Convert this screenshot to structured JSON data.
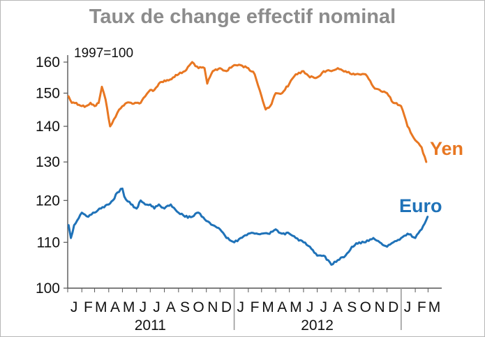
{
  "chart_data": {
    "type": "line",
    "title": "Taux de change effectif nominal",
    "note": "1997=100",
    "y_scale": "log",
    "ylim": [
      100,
      160
    ],
    "yticks": [
      "160",
      "150",
      "140",
      "130",
      "120",
      "110",
      "100"
    ],
    "ytick_values": [
      160,
      150,
      140,
      130,
      120,
      110,
      100
    ],
    "x_start": "2011-01-01",
    "x_end": "2013-03-31",
    "month_ticks": [
      "J",
      "F",
      "M",
      "A",
      "M",
      "J",
      "J",
      "A",
      "S",
      "O",
      "N",
      "D",
      "J",
      "F",
      "M",
      "A",
      "M",
      "J",
      "J",
      "A",
      "S",
      "O",
      "N",
      "D",
      "J",
      "F",
      "M"
    ],
    "month_dates": [
      "2011-01-15",
      "2011-02-15",
      "2011-03-15",
      "2011-04-15",
      "2011-05-15",
      "2011-06-15",
      "2011-07-15",
      "2011-08-15",
      "2011-09-15",
      "2011-10-15",
      "2011-11-15",
      "2011-12-15",
      "2012-01-15",
      "2012-02-15",
      "2012-03-15",
      "2012-04-15",
      "2012-05-15",
      "2012-06-15",
      "2012-07-15",
      "2012-08-15",
      "2012-09-15",
      "2012-10-15",
      "2012-11-15",
      "2012-12-15",
      "2013-01-15",
      "2013-02-15",
      "2013-03-15"
    ],
    "years": [
      {
        "label": "2011",
        "mid": "2011-07-01"
      },
      {
        "label": "2012",
        "mid": "2012-07-01"
      }
    ],
    "year_separators": [
      "2012-01-01",
      "2013-01-01"
    ],
    "series": [
      {
        "name": "Yen",
        "color": "#e87722",
        "x": [
          "2011-01-03",
          "2011-01-10",
          "2011-01-20",
          "2011-02-01",
          "2011-02-10",
          "2011-02-20",
          "2011-03-01",
          "2011-03-10",
          "2011-03-17",
          "2011-03-25",
          "2011-04-04",
          "2011-04-12",
          "2011-04-20",
          "2011-05-01",
          "2011-05-10",
          "2011-05-20",
          "2011-06-01",
          "2011-06-10",
          "2011-06-20",
          "2011-07-01",
          "2011-07-10",
          "2011-07-20",
          "2011-08-01",
          "2011-08-10",
          "2011-08-20",
          "2011-09-01",
          "2011-09-15",
          "2011-10-01",
          "2011-10-15",
          "2011-10-28",
          "2011-11-03",
          "2011-11-15",
          "2011-12-01",
          "2011-12-15",
          "2012-01-01",
          "2012-01-15",
          "2012-02-01",
          "2012-02-15",
          "2012-03-01",
          "2012-03-10",
          "2012-03-20",
          "2012-04-01",
          "2012-04-15",
          "2012-05-01",
          "2012-05-15",
          "2012-06-01",
          "2012-06-15",
          "2012-07-01",
          "2012-07-15",
          "2012-08-01",
          "2012-08-15",
          "2012-09-01",
          "2012-09-15",
          "2012-10-01",
          "2012-10-15",
          "2012-11-01",
          "2012-11-15",
          "2012-12-01",
          "2012-12-15",
          "2013-01-01",
          "2013-01-15",
          "2013-02-01",
          "2013-02-15",
          "2013-02-25"
        ],
        "values": [
          149,
          147,
          147,
          146,
          146,
          147,
          146,
          147,
          152,
          148,
          140,
          142,
          144,
          146,
          147,
          147,
          147,
          147,
          149,
          151,
          151,
          153,
          154,
          154,
          155,
          156,
          157,
          160,
          158,
          158,
          153,
          157,
          158,
          157,
          159,
          159,
          158,
          156,
          149,
          145,
          146,
          150,
          150,
          153,
          156,
          157,
          155,
          155,
          157,
          157,
          158,
          157,
          156,
          156,
          156,
          152,
          151,
          150,
          147,
          146,
          140,
          136,
          134,
          130
        ]
      },
      {
        "name": "Euro",
        "color": "#1f72b8",
        "x": [
          "2011-01-03",
          "2011-01-08",
          "2011-01-15",
          "2011-02-01",
          "2011-02-15",
          "2011-03-01",
          "2011-03-15",
          "2011-04-01",
          "2011-04-10",
          "2011-04-20",
          "2011-05-01",
          "2011-05-05",
          "2011-05-20",
          "2011-06-01",
          "2011-06-10",
          "2011-06-20",
          "2011-07-01",
          "2011-07-10",
          "2011-07-20",
          "2011-08-01",
          "2011-08-15",
          "2011-09-01",
          "2011-09-15",
          "2011-10-01",
          "2011-10-15",
          "2011-11-01",
          "2011-11-15",
          "2011-12-01",
          "2011-12-15",
          "2012-01-01",
          "2012-01-15",
          "2012-02-01",
          "2012-02-15",
          "2012-03-01",
          "2012-03-15",
          "2012-04-01",
          "2012-04-15",
          "2012-05-01",
          "2012-05-15",
          "2012-06-01",
          "2012-06-15",
          "2012-07-01",
          "2012-07-15",
          "2012-07-25",
          "2012-08-01",
          "2012-08-15",
          "2012-09-01",
          "2012-09-15",
          "2012-10-01",
          "2012-10-15",
          "2012-11-01",
          "2012-11-15",
          "2012-12-01",
          "2012-12-15",
          "2013-01-01",
          "2013-01-15",
          "2013-02-01",
          "2013-02-15",
          "2013-02-28"
        ],
        "values": [
          114,
          111,
          114,
          117,
          116,
          117,
          118,
          119,
          120,
          122,
          123,
          121,
          119,
          118,
          120,
          119,
          119,
          118,
          119,
          118,
          119,
          117,
          116,
          116,
          117,
          115,
          114,
          113,
          111,
          110,
          111,
          112,
          112,
          112,
          112,
          113,
          112,
          112,
          111,
          110,
          109,
          107,
          107,
          106,
          105,
          106,
          107,
          109,
          110,
          110,
          111,
          110,
          109,
          110,
          111,
          112,
          111,
          113,
          116
        ]
      }
    ]
  }
}
